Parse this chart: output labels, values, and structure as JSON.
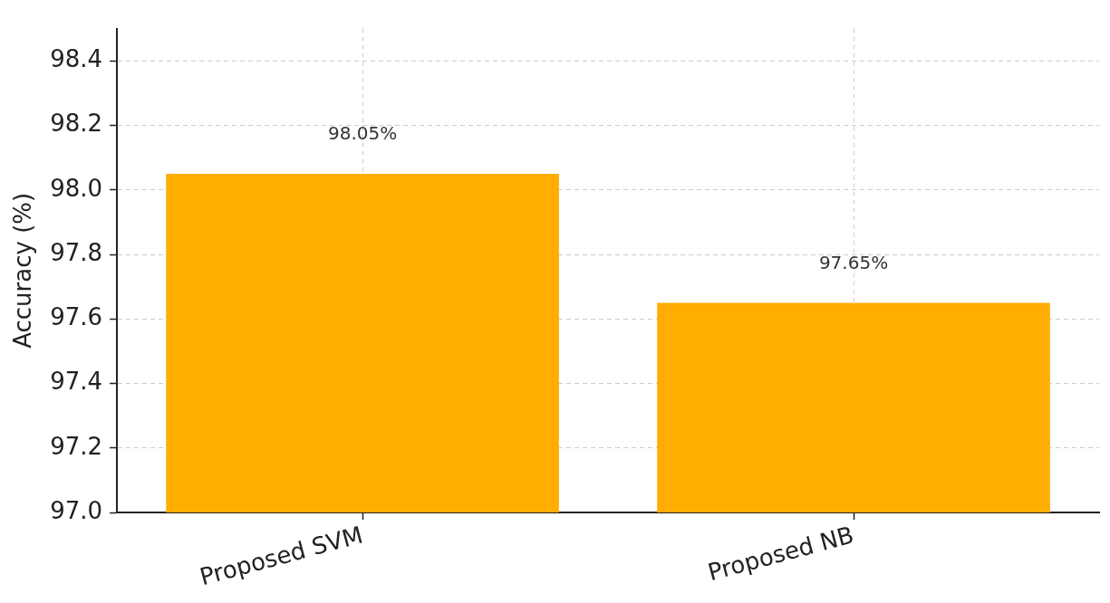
{
  "chart_data": {
    "type": "bar",
    "ylabel": "Accuracy (%)",
    "categories": [
      "Proposed SVM",
      "Proposed NB"
    ],
    "values": [
      98.05,
      97.65
    ],
    "color": "#ffad00",
    "value_labels": [
      "98.05%",
      "97.65%"
    ],
    "ylim": [
      97.0,
      98.5
    ],
    "yticks": [
      {
        "value": 97,
        "label": "97.0"
      },
      97.2,
      97.4,
      97.6,
      97.8,
      {
        "value": 98,
        "label": "98.0"
      },
      98.2,
      98.4
    ],
    "grid": true,
    "legend": false
  }
}
